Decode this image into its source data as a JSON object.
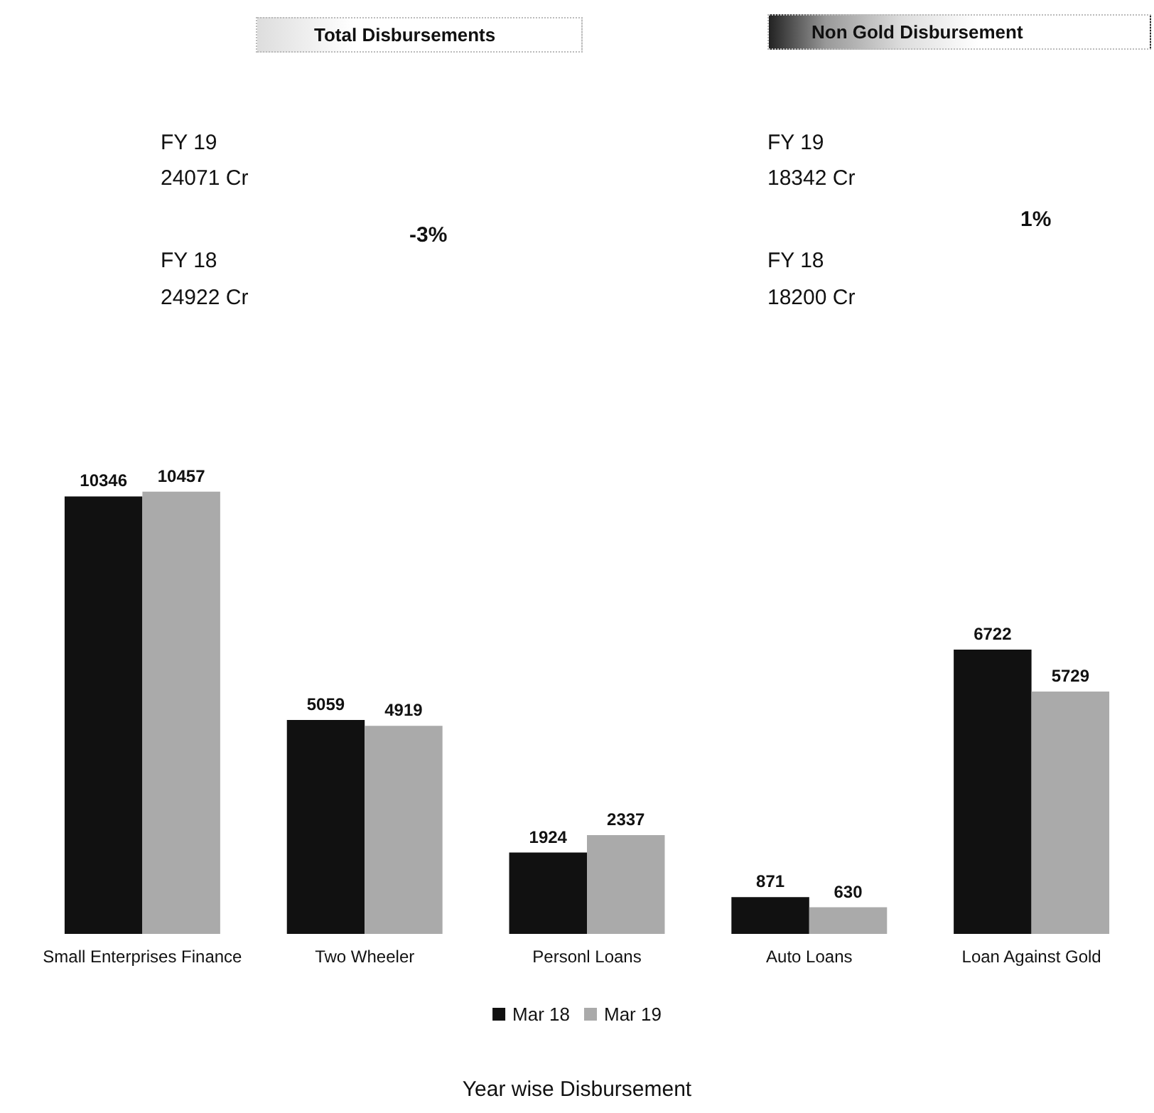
{
  "chart_data": {
    "type": "bar",
    "title": "Year wise Disbursement",
    "categories": [
      "Small Enterprises Finance",
      "Two Wheeler",
      "Personl Loans",
      "Auto Loans",
      "Loan Against Gold"
    ],
    "series": [
      {
        "name": "Mar 18",
        "color": "#111111",
        "values": [
          10346,
          5059,
          1924,
          871,
          6722
        ]
      },
      {
        "name": "Mar 19",
        "color": "#aaaaaa",
        "values": [
          10457,
          4919,
          2337,
          630,
          5729
        ]
      }
    ],
    "data_labels": true,
    "legend": "bottom",
    "annotations": [
      "Total Disbursements",
      "FY 19",
      "24071 Cr",
      "FY 18",
      "24922 Cr",
      "-3%",
      "Non Gold Disbursement",
      "FY 19",
      "18342 Cr",
      "FY 18",
      "18200 Cr",
      "1%"
    ]
  }
}
